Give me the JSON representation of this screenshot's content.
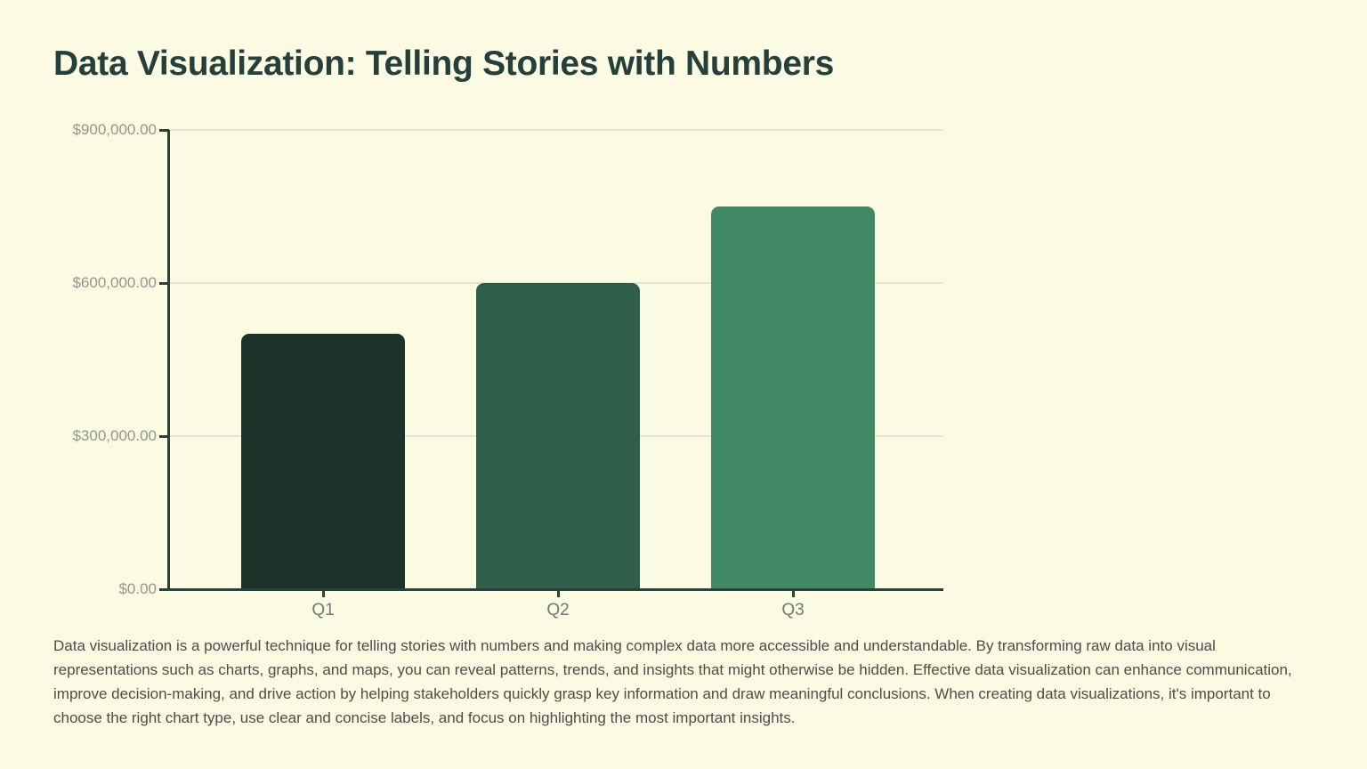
{
  "page": {
    "background": "#fbfbe4",
    "title": "Data Visualization: Telling Stories with Numbers",
    "title_color": "#25403a"
  },
  "chart_data": {
    "type": "bar",
    "title": "",
    "xlabel": "",
    "ylabel": "",
    "categories": [
      "Q1",
      "Q2",
      "Q3"
    ],
    "values": [
      500000,
      600000,
      750000
    ],
    "ylim": [
      0,
      900000
    ],
    "yticks": [
      {
        "value": 0,
        "label": "$0.00"
      },
      {
        "value": 300000,
        "label": "$300,000.00"
      },
      {
        "value": 600000,
        "label": "$600,000.00"
      },
      {
        "value": 900000,
        "label": "$900,000.00"
      }
    ],
    "grid": true,
    "legend": false,
    "bar_colors": [
      "#1c3329",
      "#2e5f4a",
      "#428a66"
    ],
    "axis_color": "#2a4238",
    "grid_color": "#e4e4d5",
    "tick_label_color": "#93968c",
    "x_label_color": "#6e7a71"
  },
  "paragraph": {
    "text": "Data visualization is a powerful technique for telling stories with numbers and making complex data more accessible and understandable. By transforming raw data into visual representations such as charts, graphs, and maps, you can reveal patterns, trends, and insights that might otherwise be hidden. Effective data visualization can enhance communication, improve decision-making, and drive action by helping stakeholders quickly grasp key information and draw meaningful conclusions. When creating data visualizations, it's important to choose the right chart type, use clear and concise labels, and focus on highlighting the most important insights.",
    "color": "#4d4d46"
  }
}
